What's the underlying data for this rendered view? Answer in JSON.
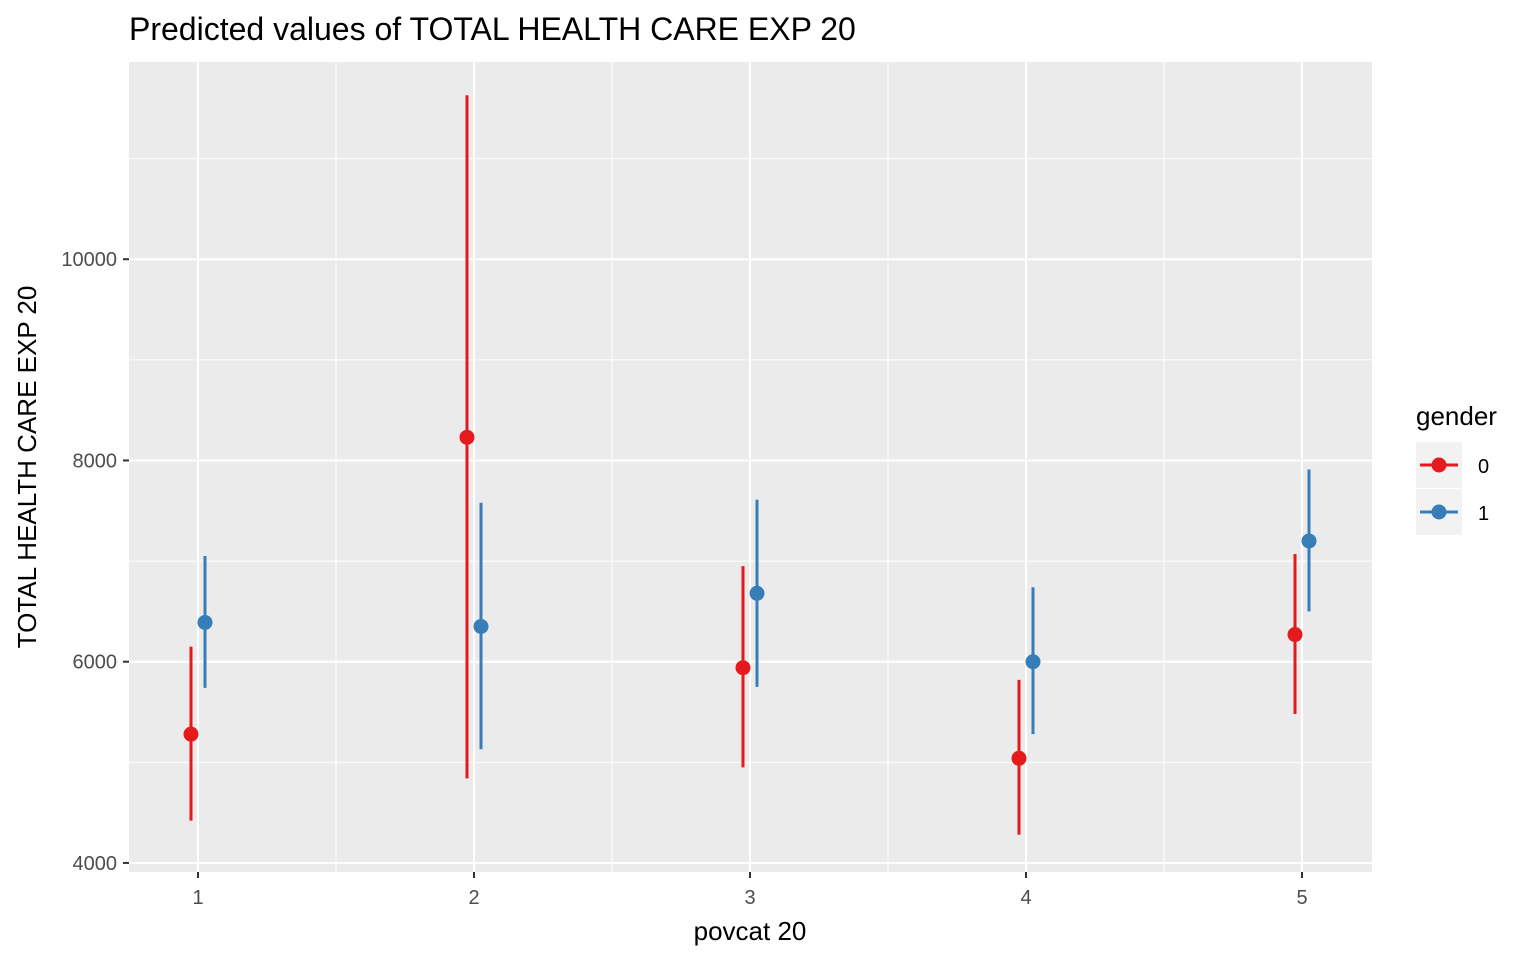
{
  "chart_data": {
    "type": "scatter",
    "title": "Predicted values of TOTAL HEALTH CARE EXP 20",
    "xlabel": "povcat 20",
    "ylabel": "TOTAL HEALTH CARE EXP 20",
    "x_categories": [
      "1",
      "2",
      "3",
      "4",
      "5"
    ],
    "y_ticks": [
      4000,
      6000,
      8000,
      10000
    ],
    "y_tick_labels": [
      "4000",
      "6000",
      "8000",
      "10000"
    ],
    "ylim": [
      3910,
      11960
    ],
    "grid": true,
    "legend": {
      "title": "gender",
      "placement": "right"
    },
    "series": [
      {
        "name": "0",
        "color": "#E41A1C",
        "values": [
          5280,
          8230,
          5940,
          5040,
          6270
        ],
        "lower": [
          4420,
          4840,
          4950,
          4280,
          5480
        ],
        "upper": [
          6150,
          11630,
          6950,
          5820,
          7070
        ]
      },
      {
        "name": "1",
        "color": "#377EB8",
        "values": [
          6390,
          6350,
          6680,
          6000,
          7200
        ],
        "lower": [
          5740,
          5130,
          5750,
          5280,
          6500
        ],
        "upper": [
          7050,
          7580,
          7610,
          6740,
          7910
        ]
      }
    ]
  }
}
